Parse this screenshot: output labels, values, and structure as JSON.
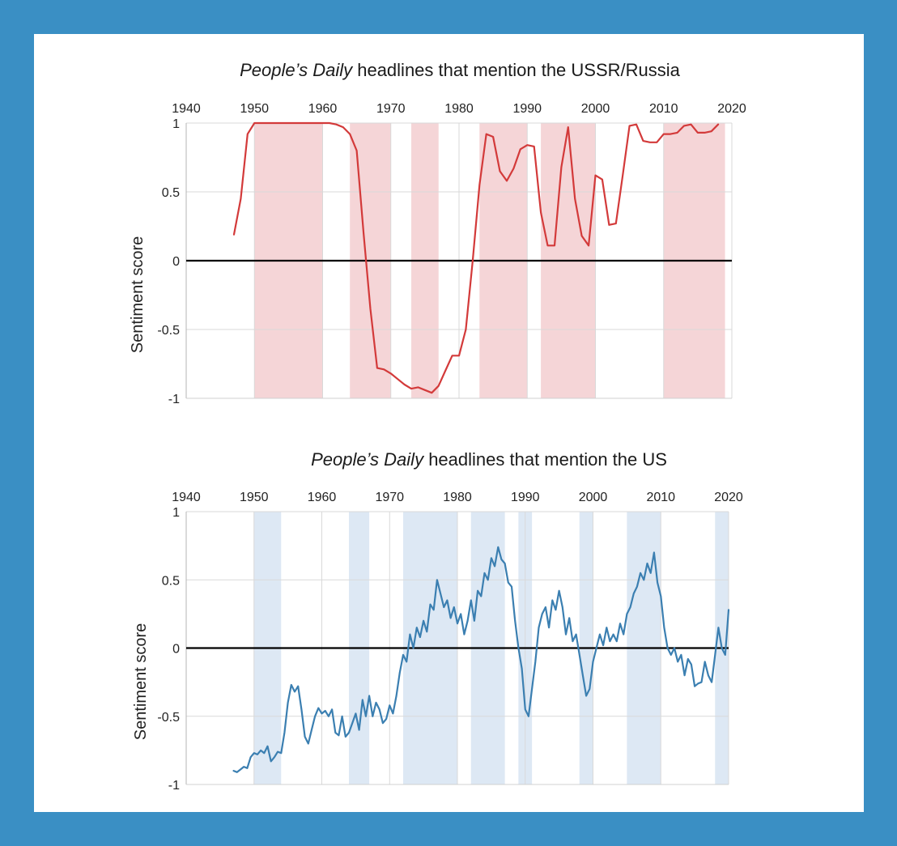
{
  "chart_data": [
    {
      "type": "line",
      "title_italic": "People’s Daily",
      "title_rest": " headlines that mention the USSR/Russia",
      "ylabel": "Sentiment score",
      "xlim": [
        1940,
        2020
      ],
      "ylim": [
        -1,
        1
      ],
      "x_ticks": [
        "1940",
        "1950",
        "1960",
        "1970",
        "1980",
        "1990",
        "2000",
        "2010",
        "2020"
      ],
      "y_ticks": [
        "1",
        "0.5",
        "0",
        "-0.5",
        "-1"
      ],
      "line_color": "#d33a3a",
      "band_color": "#f5d5d7",
      "shaded_periods": [
        [
          1950,
          1960
        ],
        [
          1964,
          1970
        ],
        [
          1973,
          1977
        ],
        [
          1983,
          1990
        ],
        [
          1992,
          2000
        ],
        [
          2010,
          2019
        ]
      ],
      "series": [
        {
          "x": [
            1947,
            1948,
            1949,
            1950,
            1952,
            1955,
            1958,
            1960,
            1961,
            1962,
            1963,
            1964,
            1965,
            1966,
            1967,
            1968,
            1969,
            1970,
            1971,
            1972,
            1973,
            1974,
            1975,
            1976,
            1977,
            1978,
            1979,
            1980,
            1981,
            1982,
            1983,
            1984,
            1985,
            1986,
            1987,
            1988,
            1989,
            1990,
            1991,
            1992,
            1993,
            1994,
            1995,
            1996,
            1997,
            1998,
            1999,
            2000,
            2001,
            2002,
            2003,
            2004,
            2005,
            2006,
            2007,
            2008,
            2009,
            2010,
            2011,
            2012,
            2013,
            2014,
            2015,
            2016,
            2017,
            2018
          ],
          "y": [
            0.19,
            0.45,
            0.92,
            1.0,
            1.0,
            1.0,
            1.0,
            1.0,
            1.0,
            0.99,
            0.97,
            0.92,
            0.8,
            0.2,
            -0.35,
            -0.78,
            -0.79,
            -0.82,
            -0.86,
            -0.9,
            -0.93,
            -0.92,
            -0.94,
            -0.96,
            -0.91,
            -0.8,
            -0.69,
            -0.69,
            -0.5,
            0.0,
            0.55,
            0.92,
            0.9,
            0.65,
            0.58,
            0.67,
            0.81,
            0.84,
            0.83,
            0.35,
            0.11,
            0.11,
            0.68,
            0.97,
            0.45,
            0.18,
            0.11,
            0.62,
            0.59,
            0.26,
            0.27,
            0.62,
            0.98,
            0.99,
            0.87,
            0.86,
            0.86,
            0.92,
            0.92,
            0.93,
            0.98,
            0.99,
            0.93,
            0.93,
            0.94,
            0.99
          ]
        }
      ]
    },
    {
      "type": "line",
      "title_italic": "People’s Daily",
      "title_rest": " headlines that mention the US",
      "ylabel": "Sentiment score",
      "xlim": [
        1940,
        2020
      ],
      "ylim": [
        -1,
        1
      ],
      "x_ticks": [
        "1940",
        "1950",
        "1960",
        "1970",
        "1980",
        "1990",
        "2000",
        "2010",
        "2020"
      ],
      "y_ticks": [
        "1",
        "0.5",
        "0",
        "-0.5",
        "-1"
      ],
      "line_color": "#3b7fb1",
      "band_color": "#dde8f4",
      "shaded_periods": [
        [
          1950,
          1954
        ],
        [
          1964,
          1967
        ],
        [
          1972,
          1980
        ],
        [
          1982,
          1987
        ],
        [
          1989,
          1991
        ],
        [
          1998,
          2000
        ],
        [
          2005,
          2010
        ],
        [
          2018,
          2020
        ]
      ],
      "series": [
        {
          "x": [
            1947,
            1947.5,
            1948,
            1948.5,
            1949,
            1949.5,
            1950,
            1950.5,
            1951,
            1951.5,
            1952,
            1952.5,
            1953,
            1953.5,
            1954,
            1954.5,
            1955,
            1955.5,
            1956,
            1956.5,
            1957,
            1957.5,
            1958,
            1958.5,
            1959,
            1959.5,
            1960,
            1960.5,
            1961,
            1961.5,
            1962,
            1962.5,
            1963,
            1963.5,
            1964,
            1964.5,
            1965,
            1965.5,
            1966,
            1966.5,
            1967,
            1967.5,
            1968,
            1968.5,
            1969,
            1969.5,
            1970,
            1970.5,
            1971,
            1971.5,
            1972,
            1972.5,
            1973,
            1973.5,
            1974,
            1974.5,
            1975,
            1975.5,
            1976,
            1976.5,
            1977,
            1977.5,
            1978,
            1978.5,
            1979,
            1979.5,
            1980,
            1980.5,
            1981,
            1981.5,
            1982,
            1982.5,
            1983,
            1983.5,
            1984,
            1984.5,
            1985,
            1985.5,
            1986,
            1986.5,
            1987,
            1987.5,
            1988,
            1988.5,
            1989,
            1989.5,
            1990,
            1990.5,
            1991,
            1991.5,
            1992,
            1992.5,
            1993,
            1993.5,
            1994,
            1994.5,
            1995,
            1995.5,
            1996,
            1996.5,
            1997,
            1997.5,
            1998,
            1998.5,
            1999,
            1999.5,
            2000,
            2000.5,
            2001,
            2001.5,
            2002,
            2002.5,
            2003,
            2003.5,
            2004,
            2004.5,
            2005,
            2005.5,
            2006,
            2006.5,
            2007,
            2007.5,
            2008,
            2008.5,
            2009,
            2009.5,
            2010,
            2010.5,
            2011,
            2011.5,
            2012,
            2012.5,
            2013,
            2013.5,
            2014,
            2014.5,
            2015,
            2015.5,
            2016,
            2016.5,
            2017,
            2017.5,
            2018,
            2018.5,
            2019,
            2019.5,
            2020
          ],
          "y": [
            -0.9,
            -0.91,
            -0.89,
            -0.87,
            -0.88,
            -0.8,
            -0.77,
            -0.78,
            -0.75,
            -0.77,
            -0.72,
            -0.83,
            -0.8,
            -0.76,
            -0.77,
            -0.62,
            -0.4,
            -0.27,
            -0.32,
            -0.28,
            -0.45,
            -0.65,
            -0.7,
            -0.6,
            -0.5,
            -0.44,
            -0.48,
            -0.46,
            -0.5,
            -0.45,
            -0.62,
            -0.64,
            -0.5,
            -0.65,
            -0.62,
            -0.55,
            -0.48,
            -0.6,
            -0.38,
            -0.5,
            -0.35,
            -0.5,
            -0.4,
            -0.45,
            -0.55,
            -0.52,
            -0.42,
            -0.48,
            -0.35,
            -0.18,
            -0.05,
            -0.1,
            0.1,
            0.0,
            0.15,
            0.08,
            0.2,
            0.12,
            0.32,
            0.28,
            0.5,
            0.4,
            0.3,
            0.35,
            0.22,
            0.3,
            0.18,
            0.25,
            0.1,
            0.2,
            0.35,
            0.2,
            0.42,
            0.38,
            0.55,
            0.5,
            0.66,
            0.6,
            0.74,
            0.65,
            0.62,
            0.48,
            0.45,
            0.2,
            0.0,
            -0.15,
            -0.45,
            -0.5,
            -0.3,
            -0.1,
            0.15,
            0.25,
            0.3,
            0.15,
            0.35,
            0.28,
            0.42,
            0.3,
            0.1,
            0.22,
            0.05,
            0.1,
            -0.05,
            -0.2,
            -0.35,
            -0.3,
            -0.1,
            0.0,
            0.1,
            0.02,
            0.15,
            0.05,
            0.1,
            0.05,
            0.18,
            0.1,
            0.25,
            0.3,
            0.4,
            0.45,
            0.55,
            0.5,
            0.62,
            0.55,
            0.7,
            0.48,
            0.38,
            0.15,
            0.0,
            -0.05,
            0.0,
            -0.1,
            -0.05,
            -0.2,
            -0.08,
            -0.12,
            -0.28,
            -0.26,
            -0.25,
            -0.1,
            -0.2,
            -0.25,
            -0.05,
            0.15,
            0.0,
            -0.05,
            0.28
          ]
        }
      ]
    }
  ]
}
